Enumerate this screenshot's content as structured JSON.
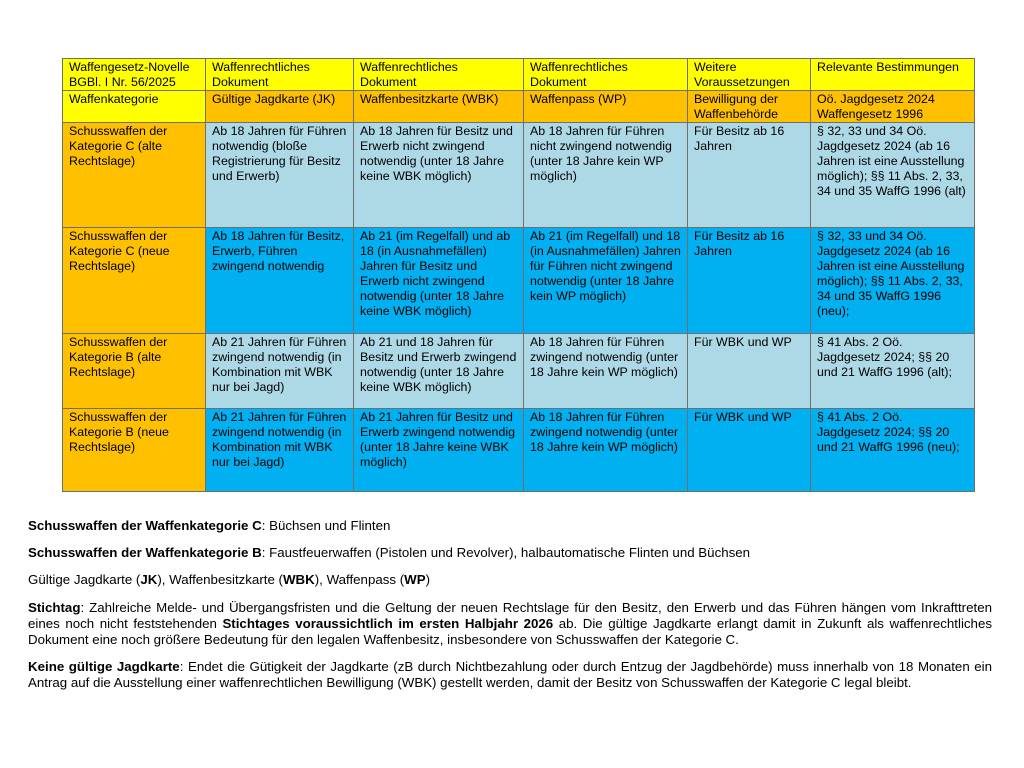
{
  "table": {
    "colors": {
      "header": "#ffff00",
      "category": "#ffc000",
      "row_light": "#add8e6",
      "row_bright": "#00b0f0"
    },
    "header_row_1": [
      "Waffengesetz-Novelle BGBl. I Nr. 56/2025",
      "Waffenrechtliches Dokument",
      "Waffenrechtliches Dokument",
      "Waffenrechtliches Dokument",
      "Weitere Voraussetzungen",
      "Relevante Bestimmungen"
    ],
    "header_row_2": [
      "Waffenkategorie",
      "Gültige Jagdkarte (JK)",
      "Waffenbesitzkarte (WBK)",
      "Waffenpass (WP)",
      "Bewilligung der Waffenbehörde",
      "Oö. Jagdgesetz 2024 Waffengesetz 1996"
    ],
    "rows": [
      [
        "Schusswaffen der Kategorie C (alte Rechtslage)",
        "Ab 18 Jahren für Führen notwendig (bloße Registrierung für Besitz und Erwerb)",
        "Ab 18 Jahren für Besitz und Erwerb nicht zwingend notwendig (unter 18 Jahre keine WBK möglich)",
        "Ab 18 Jahren für Führen nicht zwingend notwendig (unter 18 Jahre kein WP möglich)",
        "Für Besitz ab 16 Jahren",
        "§ 32, 33 und 34 Oö. Jagdgesetz 2024 (ab 16 Jahren ist eine Ausstellung möglich); §§ 11 Abs. 2, 33, 34 und 35 WaffG 1996 (alt)"
      ],
      [
        "Schusswaffen der Kategorie C (neue Rechtslage)",
        "Ab 18 Jahren für Besitz, Erwerb, Führen zwingend notwendig",
        "Ab 21 (im Regelfall) und ab 18 (in Ausnahmefällen) Jahren für Besitz und Erwerb nicht zwingend notwendig (unter 18 Jahre keine WBK möglich)",
        "Ab 21 (im Regelfall) und 18 (in Ausnahmefällen) Jahren für Führen nicht zwingend notwendig (unter 18 Jahre kein WP möglich)",
        "Für Besitz ab 16 Jahren",
        "§ 32, 33 und 34 Oö. Jagdgesetz 2024 (ab 16 Jahren ist eine Ausstellung möglich); §§ 11 Abs. 2, 33, 34 und 35 WaffG 1996 (neu);"
      ],
      [
        "Schusswaffen der Kategorie B (alte Rechtslage)",
        "Ab 21 Jahren für Führen zwingend notwendig (in Kombination mit WBK nur bei Jagd)",
        "Ab 21 und 18 Jahren für Besitz und Erwerb zwingend notwendig (unter 18 Jahre keine WBK möglich)",
        "Ab 18 Jahren für Führen zwingend notwendig (unter 18 Jahre kein WP möglich)",
        "Für WBK und WP",
        "§ 41 Abs. 2 Oö. Jagdgesetz 2024; §§ 20 und 21 WaffG 1996 (alt);"
      ],
      [
        "Schusswaffen der Kategorie B (neue Rechtslage)",
        "Ab 21 Jahren für Führen zwingend notwendig (in Kombination mit WBK nur bei Jagd)",
        "Ab 21 Jahren für Besitz und Erwerb zwingend notwendig (unter 18 Jahre keine WBK möglich)",
        "Ab 18 Jahren für Führen zwingend notwendig (unter 18 Jahre kein WP möglich)",
        "Für WBK und WP",
        "§ 41 Abs. 2 Oö. Jagdgesetz 2024; §§ 20 und 21 WaffG 1996 (neu);"
      ]
    ]
  },
  "notes": [
    [
      {
        "b": true,
        "t": "Schusswaffen der Waffenkategorie C"
      },
      {
        "b": false,
        "t": ": Büchsen und Flinten"
      }
    ],
    [
      {
        "b": true,
        "t": "Schusswaffen der Waffenkategorie B"
      },
      {
        "b": false,
        "t": ": Faustfeuerwaffen (Pistolen und Revolver), halbautomatische Flinten und Büchsen"
      }
    ],
    [
      {
        "b": false,
        "t": "Gültige Jagdkarte ("
      },
      {
        "b": true,
        "t": "JK"
      },
      {
        "b": false,
        "t": "), Waffenbesitzkarte ("
      },
      {
        "b": true,
        "t": "WBK"
      },
      {
        "b": false,
        "t": "), Waffenpass ("
      },
      {
        "b": true,
        "t": "WP"
      },
      {
        "b": false,
        "t": ")"
      }
    ],
    [
      {
        "b": true,
        "t": "Stichtag"
      },
      {
        "b": false,
        "t": ": Zahlreiche Melde- und Übergangsfristen und die Geltung der neuen Rechtslage für den Besitz, den Erwerb und das Führen hängen vom Inkrafttreten eines noch nicht feststehenden "
      },
      {
        "b": true,
        "t": "Stichtages voraussichtlich im ersten Halbjahr 2026"
      },
      {
        "b": false,
        "t": " ab. Die gültige Jagdkarte erlangt damit in Zukunft als waffenrechtliches Dokument eine noch größere Bedeutung für den legalen Waffenbesitz, insbesondere von Schusswaffen der Kategorie C."
      }
    ],
    [
      {
        "b": true,
        "t": "Keine gültige Jagdkarte"
      },
      {
        "b": false,
        "t": ": Endet die Gütigkeit der Jagdkarte (zB durch Nichtbezahlung oder durch Entzug der Jagdbehörde) muss innerhalb von 18 Monaten ein Antrag auf die Ausstellung einer waffenrechtlichen Bewilligung (WBK) gestellt werden, damit der Besitz von Schusswaffen der Kategorie C legal bleibt."
      }
    ]
  ]
}
